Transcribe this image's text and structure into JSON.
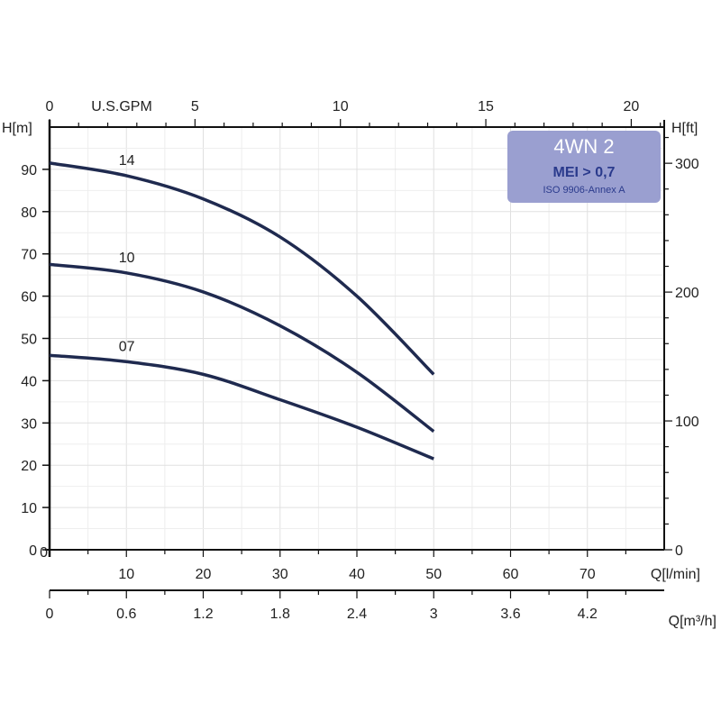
{
  "chart_data": {
    "type": "line",
    "title": "4WN 2",
    "badge": {
      "title": "4WN 2",
      "line1": "MEI > 0,7",
      "line2": "ISO 9906-Annex A",
      "bg": "#9a9fd0",
      "title_color": "#ffffff",
      "text_color": "#2a3a8c"
    },
    "xlabel": "Q[l/min]",
    "xlim": [
      0,
      80
    ],
    "x_ticks": [
      0,
      10,
      20,
      30,
      40,
      50,
      60,
      70
    ],
    "ylabel": "H[m]",
    "ylim": [
      0,
      100
    ],
    "y_ticks": [
      0,
      10,
      20,
      30,
      40,
      50,
      60,
      70,
      80,
      90
    ],
    "ylabel_right": "H[ft]",
    "y_right_ticks": [
      0,
      100,
      200,
      300
    ],
    "xlabel_top": "U.S.GPM",
    "x_top_ticks": [
      0,
      5,
      10,
      15,
      20
    ],
    "xlabel_bottom2": "Q[m³/h]",
    "x_bottom2_ticks": [
      "0",
      "0.6",
      "1.2",
      "1.8",
      "2.4",
      "3",
      "3.6",
      "4.2"
    ],
    "grid": true,
    "line_color": "#1f2a4f",
    "series": [
      {
        "name": "14",
        "x": [
          0,
          10,
          20,
          30,
          40,
          50
        ],
        "y": [
          91.5,
          88.5,
          83,
          74,
          60,
          41.5
        ]
      },
      {
        "name": "10",
        "x": [
          0,
          10,
          20,
          30,
          40,
          50
        ],
        "y": [
          67.5,
          65.5,
          61,
          53,
          42,
          28
        ]
      },
      {
        "name": "07",
        "x": [
          0,
          10,
          20,
          30,
          40,
          50
        ],
        "y": [
          46,
          44.5,
          41.5,
          35.5,
          29,
          21.5
        ]
      }
    ]
  }
}
